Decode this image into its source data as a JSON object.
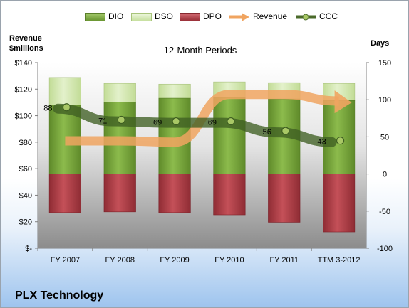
{
  "legend": {
    "dio": "DIO",
    "dso": "DSO",
    "dpo": "DPO",
    "revenue": "Revenue",
    "ccc": "CCC"
  },
  "left_axis_title": {
    "line1": "Revenue",
    "line2": "$millions"
  },
  "right_axis_title": "Days",
  "chart_title": "12-Month Periods",
  "company": "PLX Technology",
  "colors": {
    "dio": "#77a33a",
    "dso": "#d4e8b0",
    "dpo": "#b0414a",
    "revenue": "#f0a460",
    "ccc": "#4a6a2a"
  },
  "chart_data": {
    "type": "bar",
    "categories": [
      "FY 2007",
      "FY 2008",
      "FY 2009",
      "FY 2010",
      "FY 2011",
      "TTM 3-2012"
    ],
    "left_axis": {
      "ylim": [
        0,
        140
      ],
      "ticks": [
        0,
        20,
        40,
        60,
        80,
        100,
        120,
        140
      ],
      "tick_labels": [
        "$-",
        "$20",
        "$40",
        "$60",
        "$80",
        "$100",
        "$120",
        "$140"
      ]
    },
    "right_axis": {
      "ylim": [
        -100,
        150
      ],
      "ticks": [
        -100,
        -50,
        0,
        50,
        100,
        150
      ],
      "tick_labels": [
        "-100",
        "-50",
        "0",
        "50",
        "100",
        "150"
      ]
    },
    "series": [
      {
        "name": "DIO",
        "axis": "right",
        "values": [
          93,
          97,
          102,
          103,
          101,
          99
        ]
      },
      {
        "name": "DSO",
        "axis": "right",
        "values": [
          37,
          25,
          19,
          21,
          22,
          23
        ]
      },
      {
        "name": "DPO",
        "axis": "right",
        "values": [
          -52,
          -51,
          -52,
          -55,
          -65,
          -78
        ]
      },
      {
        "name": "Revenue",
        "axis": "left",
        "values": [
          81,
          81,
          80,
          116,
          116,
          111
        ]
      },
      {
        "name": "CCC",
        "axis": "right",
        "values": [
          88,
          71,
          69,
          69,
          56,
          43
        ],
        "labels": [
          "88",
          "71",
          "69",
          "69",
          "56",
          "43"
        ]
      }
    ],
    "grid": false,
    "legend_position": "top"
  }
}
